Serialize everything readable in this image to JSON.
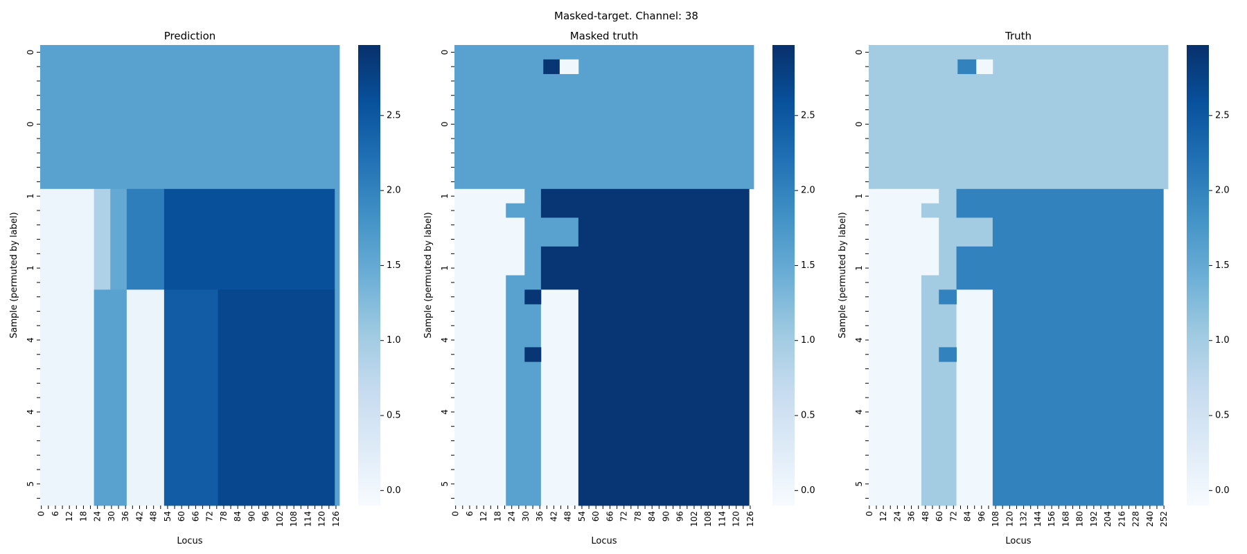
{
  "figure_title": "Masked-target. Channel: 38",
  "colormap": [
    "#f7fbff",
    "#deebf7",
    "#c6dbef",
    "#9ecae1",
    "#6baed6",
    "#4292c6",
    "#2171b5",
    "#08519c",
    "#08306b"
  ],
  "chart_data": [
    {
      "type": "heatmap",
      "title": "Prediction",
      "xlabel": "Locus",
      "ylabel": "Sample (permuted by label)",
      "n_cols": 128,
      "n_rows": 32,
      "x_ticks": [
        "0",
        "6",
        "12",
        "18",
        "24",
        "30",
        "36",
        "42",
        "48",
        "54",
        "60",
        "66",
        "72",
        "78",
        "84",
        "90",
        "96",
        "102",
        "108",
        "114",
        "120",
        "126"
      ],
      "y_ticks": [
        {
          "row": 0,
          "label": "0"
        },
        {
          "row": 5,
          "label": "0"
        },
        {
          "row": 10,
          "label": "1"
        },
        {
          "row": 15,
          "label": "1"
        },
        {
          "row": 20,
          "label": "4"
        },
        {
          "row": 25,
          "label": "4"
        },
        {
          "row": 30,
          "label": "5"
        }
      ],
      "colorbar": {
        "vmin": -0.1,
        "vmax": 2.97,
        "ticks": [
          "0.0",
          "0.5",
          "1.0",
          "1.5",
          "2.0",
          "2.5"
        ]
      },
      "blocks": [
        {
          "rows": [
            0,
            10
          ],
          "cols": [
            0,
            128
          ],
          "value": 1.6
        },
        {
          "rows": [
            10,
            17
          ],
          "cols": [
            0,
            23
          ],
          "value": 0.05
        },
        {
          "rows": [
            10,
            17
          ],
          "cols": [
            23,
            30
          ],
          "value": 0.9
        },
        {
          "rows": [
            10,
            17
          ],
          "cols": [
            30,
            37
          ],
          "value": 1.5
        },
        {
          "rows": [
            10,
            17
          ],
          "cols": [
            37,
            53
          ],
          "value": 2.05
        },
        {
          "rows": [
            10,
            17
          ],
          "cols": [
            53,
            126
          ],
          "value": 2.6
        },
        {
          "rows": [
            10,
            17
          ],
          "cols": [
            126,
            128
          ],
          "value": 1.6
        },
        {
          "rows": [
            17,
            32
          ],
          "cols": [
            0,
            23
          ],
          "value": 0.05
        },
        {
          "rows": [
            17,
            32
          ],
          "cols": [
            23,
            37
          ],
          "value": 1.6
        },
        {
          "rows": [
            17,
            32
          ],
          "cols": [
            37,
            53
          ],
          "value": 0.08
        },
        {
          "rows": [
            17,
            32
          ],
          "cols": [
            53,
            76
          ],
          "value": 2.45
        },
        {
          "rows": [
            17,
            32
          ],
          "cols": [
            76,
            126
          ],
          "value": 2.7
        },
        {
          "rows": [
            17,
            32
          ],
          "cols": [
            126,
            128
          ],
          "value": 1.6
        }
      ]
    },
    {
      "type": "heatmap",
      "title": "Masked truth",
      "xlabel": "Locus",
      "ylabel": "Sample (permuted by label)",
      "n_cols": 128,
      "n_rows": 32,
      "x_ticks": [
        "0",
        "6",
        "12",
        "18",
        "24",
        "30",
        "36",
        "42",
        "48",
        "54",
        "60",
        "66",
        "72",
        "78",
        "84",
        "90",
        "96",
        "102",
        "108",
        "114",
        "120",
        "126"
      ],
      "y_ticks": [
        {
          "row": 0,
          "label": "0"
        },
        {
          "row": 5,
          "label": "0"
        },
        {
          "row": 10,
          "label": "1"
        },
        {
          "row": 15,
          "label": "1"
        },
        {
          "row": 20,
          "label": "4"
        },
        {
          "row": 25,
          "label": "4"
        },
        {
          "row": 30,
          "label": "5"
        }
      ],
      "colorbar": {
        "vmin": -0.1,
        "vmax": 2.97,
        "ticks": [
          "0.0",
          "0.5",
          "1.0",
          "1.5",
          "2.0",
          "2.5"
        ]
      },
      "blocks": [
        {
          "rows": [
            0,
            10
          ],
          "cols": [
            0,
            128
          ],
          "value": 1.6
        },
        {
          "rows": [
            1,
            2
          ],
          "cols": [
            37,
            38
          ],
          "value": 1.6
        },
        {
          "rows": [
            1,
            2
          ],
          "cols": [
            38,
            45
          ],
          "value": 2.9
        },
        {
          "rows": [
            1,
            2
          ],
          "cols": [
            45,
            53
          ],
          "value": 0.0
        },
        {
          "rows": [
            10,
            11
          ],
          "cols": [
            0,
            30
          ],
          "value": 0.0
        },
        {
          "rows": [
            10,
            11
          ],
          "cols": [
            30,
            37
          ],
          "value": 1.6
        },
        {
          "rows": [
            10,
            11
          ],
          "cols": [
            37,
            126
          ],
          "value": 2.9
        },
        {
          "rows": [
            11,
            12
          ],
          "cols": [
            0,
            22
          ],
          "value": 0.0
        },
        {
          "rows": [
            11,
            12
          ],
          "cols": [
            22,
            30
          ],
          "value": 1.6
        },
        {
          "rows": [
            11,
            12
          ],
          "cols": [
            30,
            37
          ],
          "value": 1.6
        },
        {
          "rows": [
            11,
            12
          ],
          "cols": [
            37,
            126
          ],
          "value": 2.9
        },
        {
          "rows": [
            12,
            14
          ],
          "cols": [
            0,
            30
          ],
          "value": 0.0
        },
        {
          "rows": [
            12,
            14
          ],
          "cols": [
            30,
            53
          ],
          "value": 1.6
        },
        {
          "rows": [
            12,
            14
          ],
          "cols": [
            53,
            126
          ],
          "value": 2.9
        },
        {
          "rows": [
            14,
            16
          ],
          "cols": [
            0,
            30
          ],
          "value": 0.0
        },
        {
          "rows": [
            14,
            16
          ],
          "cols": [
            30,
            37
          ],
          "value": 1.6
        },
        {
          "rows": [
            14,
            16
          ],
          "cols": [
            37,
            126
          ],
          "value": 2.9
        },
        {
          "rows": [
            16,
            17
          ],
          "cols": [
            0,
            22
          ],
          "value": 0.0
        },
        {
          "rows": [
            16,
            17
          ],
          "cols": [
            22,
            37
          ],
          "value": 1.6
        },
        {
          "rows": [
            16,
            17
          ],
          "cols": [
            37,
            126
          ],
          "value": 2.9
        },
        {
          "rows": [
            17,
            32
          ],
          "cols": [
            0,
            22
          ],
          "value": 0.0
        },
        {
          "rows": [
            17,
            32
          ],
          "cols": [
            22,
            37
          ],
          "value": 1.6
        },
        {
          "rows": [
            17,
            32
          ],
          "cols": [
            37,
            53
          ],
          "value": 0.0
        },
        {
          "rows": [
            17,
            32
          ],
          "cols": [
            53,
            126
          ],
          "value": 2.9
        },
        {
          "rows": [
            17,
            18
          ],
          "cols": [
            30,
            37
          ],
          "value": 2.9
        },
        {
          "rows": [
            21,
            22
          ],
          "cols": [
            30,
            37
          ],
          "value": 2.9
        }
      ]
    },
    {
      "type": "heatmap",
      "title": "Truth",
      "xlabel": "Locus",
      "ylabel": "Sample (permuted by label)",
      "n_cols": 256,
      "n_rows": 32,
      "x_ticks": [
        "0",
        "12",
        "24",
        "36",
        "48",
        "60",
        "72",
        "84",
        "96",
        "108",
        "120",
        "132",
        "144",
        "156",
        "168",
        "180",
        "192",
        "204",
        "216",
        "228",
        "240",
        "252"
      ],
      "y_ticks": [
        {
          "row": 0,
          "label": "0"
        },
        {
          "row": 5,
          "label": "0"
        },
        {
          "row": 10,
          "label": "1"
        },
        {
          "row": 15,
          "label": "1"
        },
        {
          "row": 20,
          "label": "4"
        },
        {
          "row": 25,
          "label": "4"
        },
        {
          "row": 30,
          "label": "5"
        }
      ],
      "colorbar": {
        "vmin": -0.1,
        "vmax": 2.97,
        "ticks": [
          "0.0",
          "0.5",
          "1.0",
          "1.5",
          "2.0",
          "2.5"
        ]
      },
      "blocks": [
        {
          "rows": [
            0,
            10
          ],
          "cols": [
            0,
            256
          ],
          "value": 1.0
        },
        {
          "rows": [
            1,
            2
          ],
          "cols": [
            76,
            92
          ],
          "value": 2.0
        },
        {
          "rows": [
            1,
            2
          ],
          "cols": [
            92,
            106
          ],
          "value": 0.0
        },
        {
          "rows": [
            10,
            11
          ],
          "cols": [
            0,
            60
          ],
          "value": 0.0
        },
        {
          "rows": [
            10,
            11
          ],
          "cols": [
            60,
            75
          ],
          "value": 1.0
        },
        {
          "rows": [
            10,
            11
          ],
          "cols": [
            75,
            252
          ],
          "value": 2.0
        },
        {
          "rows": [
            11,
            12
          ],
          "cols": [
            0,
            45
          ],
          "value": 0.0
        },
        {
          "rows": [
            11,
            12
          ],
          "cols": [
            45,
            75
          ],
          "value": 1.0
        },
        {
          "rows": [
            11,
            12
          ],
          "cols": [
            75,
            252
          ],
          "value": 2.0
        },
        {
          "rows": [
            12,
            14
          ],
          "cols": [
            0,
            60
          ],
          "value": 0.0
        },
        {
          "rows": [
            12,
            14
          ],
          "cols": [
            60,
            106
          ],
          "value": 1.0
        },
        {
          "rows": [
            12,
            14
          ],
          "cols": [
            106,
            252
          ],
          "value": 2.0
        },
        {
          "rows": [
            14,
            16
          ],
          "cols": [
            0,
            60
          ],
          "value": 0.0
        },
        {
          "rows": [
            14,
            16
          ],
          "cols": [
            60,
            75
          ],
          "value": 1.0
        },
        {
          "rows": [
            14,
            16
          ],
          "cols": [
            75,
            252
          ],
          "value": 2.0
        },
        {
          "rows": [
            16,
            17
          ],
          "cols": [
            0,
            45
          ],
          "value": 0.0
        },
        {
          "rows": [
            16,
            17
          ],
          "cols": [
            45,
            75
          ],
          "value": 1.0
        },
        {
          "rows": [
            16,
            17
          ],
          "cols": [
            75,
            252
          ],
          "value": 2.0
        },
        {
          "rows": [
            17,
            32
          ],
          "cols": [
            0,
            45
          ],
          "value": 0.0
        },
        {
          "rows": [
            17,
            32
          ],
          "cols": [
            45,
            75
          ],
          "value": 1.0
        },
        {
          "rows": [
            17,
            32
          ],
          "cols": [
            75,
            106
          ],
          "value": 0.0
        },
        {
          "rows": [
            17,
            32
          ],
          "cols": [
            106,
            252
          ],
          "value": 2.0
        },
        {
          "rows": [
            17,
            18
          ],
          "cols": [
            60,
            75
          ],
          "value": 2.0
        },
        {
          "rows": [
            21,
            22
          ],
          "cols": [
            60,
            75
          ],
          "value": 2.0
        }
      ]
    }
  ]
}
